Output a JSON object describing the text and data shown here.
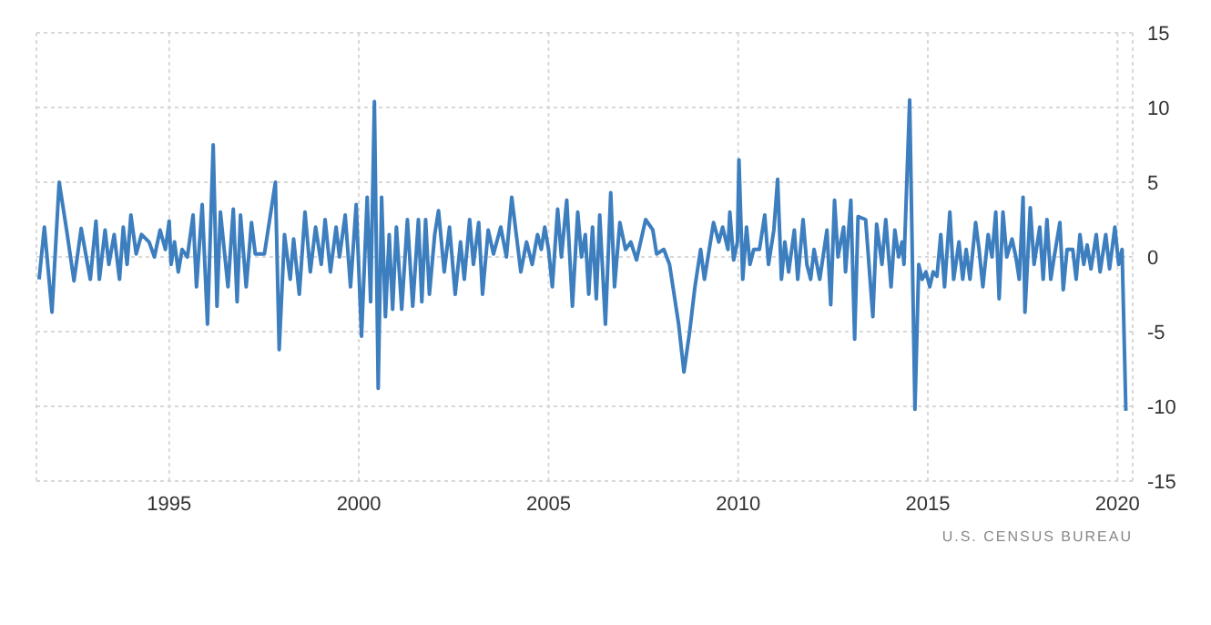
{
  "chart_data": {
    "type": "line",
    "x": [
      1991.57,
      1991.71,
      1991.91,
      1992.1,
      1992.29,
      1992.49,
      1992.68,
      1992.92,
      1993.07,
      1993.16,
      1993.31,
      1993.41,
      1993.55,
      1993.69,
      1993.79,
      1993.89,
      1993.99,
      1994.13,
      1994.27,
      1994.47,
      1994.61,
      1994.76,
      1994.9,
      1995.0,
      1995.05,
      1995.14,
      1995.24,
      1995.34,
      1995.48,
      1995.63,
      1995.72,
      1995.87,
      1996.01,
      1996.16,
      1996.26,
      1996.35,
      1996.55,
      1996.69,
      1996.79,
      1996.88,
      1997.03,
      1997.17,
      1997.27,
      1997.51,
      1997.8,
      1997.9,
      1998.04,
      1998.19,
      1998.28,
      1998.43,
      1998.58,
      1998.72,
      1998.86,
      1999.01,
      1999.11,
      1999.25,
      1999.4,
      1999.49,
      1999.64,
      1999.78,
      1999.93,
      2000.07,
      2000.22,
      2000.31,
      2000.41,
      2000.51,
      2000.6,
      2000.7,
      2000.8,
      2000.89,
      2000.99,
      2001.13,
      2001.28,
      2001.42,
      2001.57,
      2001.66,
      2001.76,
      2001.86,
      2002.0,
      2002.1,
      2002.25,
      2002.39,
      2002.54,
      2002.68,
      2002.78,
      2002.92,
      2003.02,
      2003.16,
      2003.26,
      2003.41,
      2003.55,
      2003.74,
      2003.89,
      2004.03,
      2004.27,
      2004.42,
      2004.57,
      2004.71,
      2004.81,
      2004.9,
      2005.0,
      2005.1,
      2005.24,
      2005.34,
      2005.48,
      2005.63,
      2005.77,
      2005.87,
      2005.97,
      2006.06,
      2006.16,
      2006.26,
      2006.35,
      2006.5,
      2006.64,
      2006.74,
      2006.88,
      2007.03,
      2007.17,
      2007.32,
      2007.56,
      2007.75,
      2007.85,
      2008.04,
      2008.19,
      2008.28,
      2008.43,
      2008.57,
      2008.72,
      2008.86,
      2009.01,
      2009.11,
      2009.35,
      2009.49,
      2009.59,
      2009.73,
      2009.78,
      2009.88,
      2009.98,
      2010.02,
      2010.12,
      2010.22,
      2010.31,
      2010.41,
      2010.56,
      2010.7,
      2010.8,
      2010.94,
      2011.04,
      2011.14,
      2011.23,
      2011.33,
      2011.48,
      2011.57,
      2011.71,
      2011.81,
      2011.91,
      2012.0,
      2012.15,
      2012.34,
      2012.44,
      2012.54,
      2012.63,
      2012.78,
      2012.83,
      2012.97,
      2013.07,
      2013.16,
      2013.36,
      2013.55,
      2013.65,
      2013.79,
      2013.89,
      2014.03,
      2014.13,
      2014.23,
      2014.32,
      2014.37,
      2014.52,
      2014.66,
      2014.76,
      2014.85,
      2014.95,
      2015.05,
      2015.14,
      2015.24,
      2015.34,
      2015.44,
      2015.58,
      2015.68,
      2015.82,
      2015.92,
      2016.01,
      2016.11,
      2016.26,
      2016.35,
      2016.45,
      2016.59,
      2016.69,
      2016.79,
      2016.88,
      2016.98,
      2017.08,
      2017.22,
      2017.32,
      2017.41,
      2017.51,
      2017.56,
      2017.7,
      2017.8,
      2017.95,
      2018.04,
      2018.14,
      2018.24,
      2018.33,
      2018.48,
      2018.57,
      2018.67,
      2018.82,
      2018.91,
      2019.01,
      2019.11,
      2019.2,
      2019.3,
      2019.44,
      2019.54,
      2019.69,
      2019.79,
      2019.93,
      2020.03,
      2020.12,
      2020.22
    ],
    "series": [
      {
        "color": "#3d7ebf",
        "values": [
          -1.5,
          2,
          -3.7,
          5,
          1.9,
          -1.6,
          1.9,
          -1.5,
          2.4,
          -1.5,
          1.8,
          -0.5,
          1.5,
          -1.5,
          2,
          -0.5,
          2.8,
          0.2,
          1.5,
          1,
          0,
          1.8,
          0.5,
          2.4,
          -0.5,
          1,
          -1,
          0.5,
          0,
          2.8,
          -2,
          3.5,
          -4.5,
          7.5,
          -3.3,
          3,
          -2,
          3.2,
          -3,
          2.8,
          -2,
          2.3,
          0.2,
          0.2,
          5,
          -6.2,
          1.5,
          -1.5,
          1.2,
          -2.5,
          3,
          -1,
          2,
          -0.5,
          2.5,
          -1,
          2,
          0,
          2.8,
          -2,
          3.5,
          -5.3,
          4,
          -3,
          10.4,
          -8.8,
          4,
          -4,
          1.5,
          -3.5,
          2,
          -3.5,
          2.5,
          -3.3,
          2.5,
          -3,
          2.5,
          -2.5,
          1.5,
          3.1,
          -1,
          2,
          -2.5,
          1,
          -1.5,
          2.5,
          -0.5,
          2.3,
          -2.5,
          1.8,
          0.2,
          2,
          0,
          4,
          -1,
          1,
          -0.5,
          1.5,
          0.5,
          2,
          0.5,
          -2,
          3.2,
          0,
          3.8,
          -3.3,
          3,
          0,
          1.5,
          -2.5,
          2,
          -2.8,
          2.8,
          -4.5,
          4.3,
          -2,
          2.3,
          0.5,
          1,
          -0.2,
          2.5,
          1.8,
          0.2,
          0.5,
          -0.5,
          -2,
          -4.5,
          -7.7,
          -5,
          -2,
          0.5,
          -1.5,
          2.3,
          1,
          2,
          0.5,
          3,
          -0.2,
          1,
          6.5,
          -1.5,
          2,
          -0.5,
          0.5,
          0.5,
          2.8,
          -0.5,
          1.8,
          5.2,
          -1.5,
          1,
          -1,
          1.8,
          -1.5,
          2.5,
          -0.5,
          -1.5,
          0.5,
          -1.5,
          1.8,
          -3.2,
          3.8,
          0,
          2,
          -1,
          3.8,
          -5.5,
          2.7,
          2.5,
          -4,
          2.2,
          -0.5,
          2.5,
          -2,
          1.8,
          0,
          1,
          -0.5,
          10.5,
          -10.2,
          -0.5,
          -1.5,
          -1,
          -2,
          -1,
          -1.3,
          1.5,
          -2,
          3,
          -1.5,
          1,
          -1.5,
          0.5,
          -1.5,
          2.3,
          0.5,
          -2,
          1.5,
          0,
          3,
          -2.8,
          3,
          0,
          1.2,
          0,
          -1.5,
          4,
          -3.7,
          3.3,
          -0.5,
          2,
          -1.5,
          2.5,
          -1.5,
          0,
          2.3,
          -2.2,
          0.5,
          0.5,
          -1.5,
          1.5,
          -0.5,
          0.8,
          -0.8,
          1.5,
          -1,
          1.5,
          -0.8,
          2,
          -0.5,
          0.5,
          -10.3
        ]
      }
    ],
    "xlim": [
      1991.5,
      2020.4
    ],
    "xticks": [
      1995,
      2000,
      2005,
      2010,
      2015,
      2020
    ],
    "ylim": [
      -15,
      15
    ],
    "yticks": [
      -15,
      -10,
      -5,
      0,
      5,
      10,
      15
    ],
    "grid": true,
    "marker": "none",
    "line_style": "solid",
    "annotations": [
      "U.S. CENSUS BUREAU"
    ]
  }
}
